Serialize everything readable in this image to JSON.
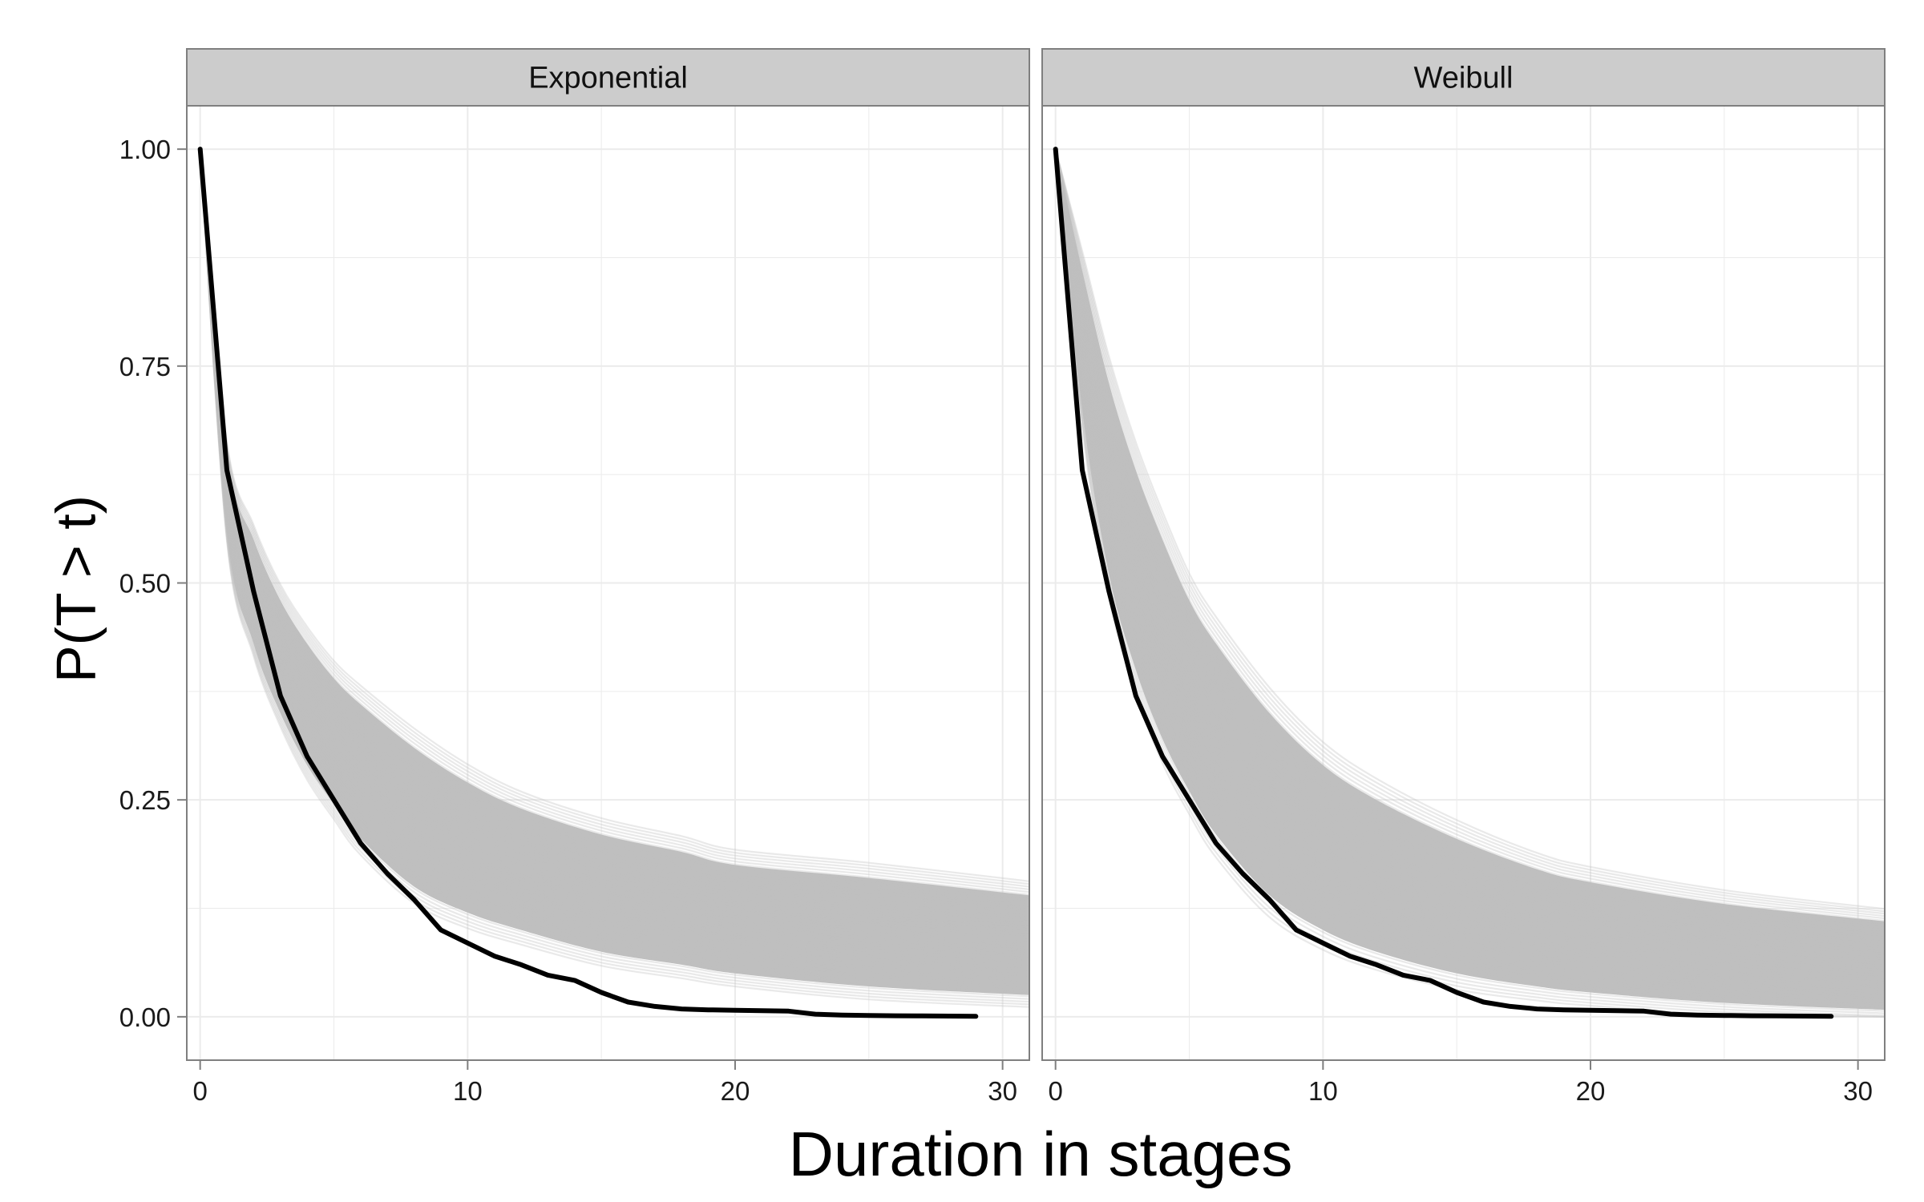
{
  "chart_data": {
    "type": "line",
    "layout": "faceted",
    "xlabel": "Duration in stages",
    "ylabel": "P(T > t)",
    "xlim": [
      -0.5,
      31
    ],
    "ylim": [
      -0.05,
      1.05
    ],
    "x_ticks": [
      0,
      10,
      20,
      30
    ],
    "x_tick_labels": [
      "0",
      "10",
      "20",
      "30"
    ],
    "y_ticks": [
      0,
      0.25,
      0.5,
      0.75,
      1.0
    ],
    "y_tick_labels": [
      "0.00",
      "0.25",
      "0.50",
      "0.75",
      "1.00"
    ],
    "grid": true,
    "colors": {
      "panel_bg": "#ffffff",
      "grid": "#ebebeb",
      "strip_bg": "#cccccc",
      "border": "#7f7f7f",
      "simulated": "#bfbfbf",
      "observed": "#000000"
    },
    "observed": {
      "x": [
        0,
        1,
        2,
        3,
        4,
        5,
        6,
        7,
        8,
        9,
        10,
        11,
        12,
        13,
        14,
        15,
        16,
        17,
        18,
        19,
        20,
        21,
        22,
        23,
        24,
        25,
        26,
        27,
        28,
        29
      ],
      "y": [
        1.0,
        0.63,
        0.49,
        0.37,
        0.3,
        0.25,
        0.2,
        0.165,
        0.135,
        0.1,
        0.085,
        0.07,
        0.06,
        0.048,
        0.042,
        0.028,
        0.017,
        0.012,
        0.009,
        0.008,
        0.0075,
        0.007,
        0.0065,
        0.003,
        0.002,
        0.0015,
        0.0012,
        0.001,
        0.0008,
        0.0005
      ]
    },
    "panels": [
      {
        "strip_label": "Exponential",
        "simulated_band": {
          "x": [
            0,
            1,
            2,
            3,
            4,
            5,
            6,
            8,
            10,
            12,
            15,
            18,
            20,
            25,
            31
          ],
          "lower": [
            1.0,
            0.56,
            0.43,
            0.35,
            0.29,
            0.245,
            0.205,
            0.15,
            0.12,
            0.1,
            0.075,
            0.06,
            0.05,
            0.035,
            0.025
          ],
          "upper": [
            1.0,
            0.65,
            0.55,
            0.48,
            0.43,
            0.39,
            0.36,
            0.31,
            0.27,
            0.24,
            0.21,
            0.19,
            0.175,
            0.16,
            0.14
          ]
        }
      },
      {
        "strip_label": "Weibull",
        "simulated_band": {
          "x": [
            0,
            1,
            2,
            3,
            4,
            5,
            6,
            8,
            10,
            12,
            15,
            18,
            20,
            25,
            31
          ],
          "lower": [
            1.0,
            0.7,
            0.51,
            0.4,
            0.32,
            0.26,
            0.21,
            0.14,
            0.1,
            0.075,
            0.05,
            0.035,
            0.028,
            0.016,
            0.008
          ],
          "upper": [
            1.0,
            0.86,
            0.73,
            0.63,
            0.55,
            0.48,
            0.43,
            0.35,
            0.29,
            0.25,
            0.205,
            0.17,
            0.155,
            0.13,
            0.11
          ]
        }
      }
    ]
  }
}
